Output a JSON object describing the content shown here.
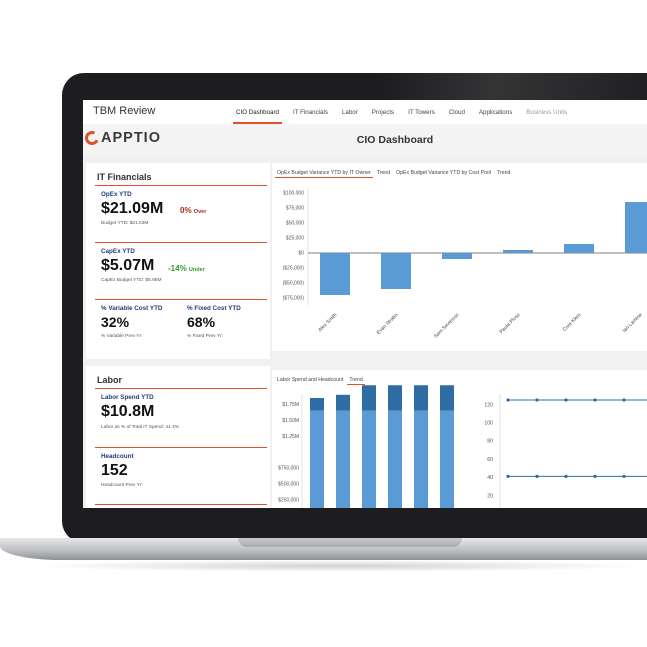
{
  "app": {
    "title": "TBM Review"
  },
  "nav": {
    "tabs": [
      {
        "label": "CIO Dashboard",
        "active": true
      },
      {
        "label": "IT Financials"
      },
      {
        "label": "Labor"
      },
      {
        "label": "Projects"
      },
      {
        "label": "IT Towers"
      },
      {
        "label": "Cloud"
      },
      {
        "label": "Applications"
      },
      {
        "label": "Business Units",
        "muted": true
      }
    ]
  },
  "header": {
    "logo_text": "APPTIO",
    "title": "CIO Dashboard"
  },
  "it_financials": {
    "title": "IT Financials",
    "opex": {
      "label": "OpEx YTD",
      "value": "$21.09M",
      "variance": "0%",
      "variance_word": "Over",
      "sub": "Budget YTD: $21.03M"
    },
    "capex": {
      "label": "CapEx YTD",
      "value": "$5.07M",
      "variance": "-14%",
      "variance_word": "Under",
      "sub": "CapEx Budget YTD: $5.95M"
    },
    "variable": {
      "label": "% Variable Cost YTD",
      "value": "32%",
      "sub": "% Variable Prev Yr:"
    },
    "fixed": {
      "label": "% Fixed Cost YTD",
      "value": "68%",
      "sub": "% Fixed Prev Yr:"
    }
  },
  "labor": {
    "title": "Labor",
    "spend": {
      "label": "Labor Spend YTD",
      "value": "$10.8M",
      "sub": "Labor as % of Total IT Spend: 41.3%"
    },
    "headcount": {
      "label": "Headcount",
      "value": "152",
      "sub": "Headcount Prev Yr:"
    }
  },
  "chart1_tabs": [
    "OpEx Budget Variance YTD by IT Owner",
    "Trend",
    "OpEx Budget Variance YTD by Cost Pool",
    "Trend"
  ],
  "chart2_tabs": [
    "Labor Spend and Headcount",
    "Trend"
  ],
  "colors": {
    "accent": "#e0502a",
    "bar": "#5b9bd5",
    "bar_dark": "#2f6ca3",
    "navy": "#1f3d7a"
  },
  "chart_data": [
    {
      "type": "bar",
      "categories": [
        "Alex Smith",
        "Evan Strabo",
        "Sam Severson",
        "Paula Ploss",
        "Cora Klein",
        "Ian Lamina"
      ],
      "values": [
        -70000,
        -60000,
        -10000,
        5000,
        15000,
        85000
      ],
      "ylim": [
        -80000,
        100000
      ],
      "yticks": [
        "$100,000",
        "$75,000",
        "$50,000",
        "$25,000",
        "$0",
        "($25,000)",
        "($50,000)",
        "($75,000)"
      ]
    },
    {
      "type": "bar",
      "stacked": true,
      "series": [
        {
          "values": [
            1650000,
            1650000,
            1650000,
            1650000,
            1650000,
            1650000
          ]
        },
        {
          "values": [
            200000,
            250000,
            400000,
            400000,
            400000,
            400000
          ]
        }
      ],
      "yticks": [
        "$1.75M",
        "$1.50M",
        "$1.25M",
        "$750,000",
        "$500,000",
        "$250,000"
      ]
    },
    {
      "type": "line",
      "yticks": [
        "120",
        "100",
        "80",
        "60",
        "40",
        "20"
      ],
      "series": [
        {
          "values": [
            125,
            125,
            125,
            125,
            125,
            125
          ]
        },
        {
          "values": [
            41,
            41,
            41,
            41,
            41,
            41
          ]
        }
      ]
    }
  ]
}
